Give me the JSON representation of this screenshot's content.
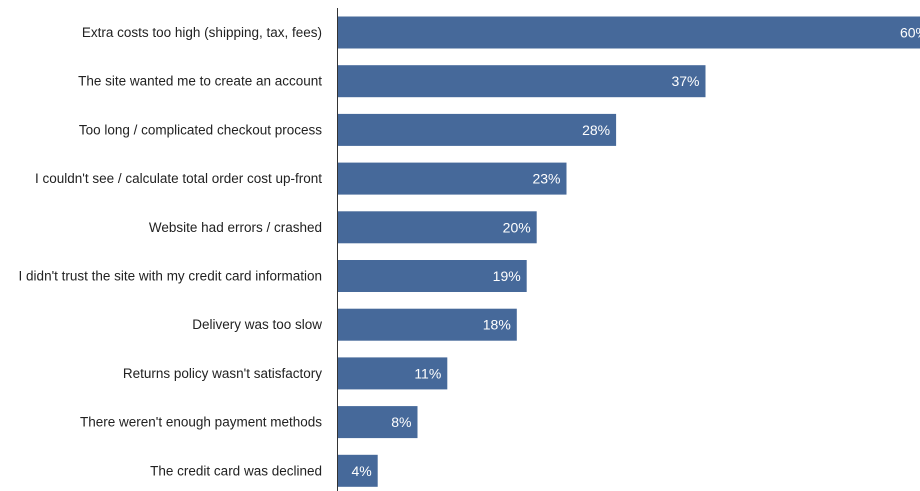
{
  "chart_data": {
    "type": "bar",
    "orientation": "horizontal",
    "categories": [
      "Extra costs too high (shipping, tax, fees)",
      "The site wanted me to create an account",
      "Too long / complicated checkout process",
      "I couldn't see / calculate total order cost up-front",
      "Website had errors / crashed",
      "I didn't trust the site with my credit card information",
      "Delivery was too slow",
      "Returns policy wasn't satisfactory",
      "There weren't enough payment methods",
      "The credit card was declined"
    ],
    "values": [
      60,
      37,
      28,
      23,
      20,
      19,
      18,
      11,
      8,
      4
    ],
    "value_labels": [
      "60%",
      "37%",
      "28%",
      "23%",
      "20%",
      "19%",
      "18%",
      "11%",
      "8%",
      "4%"
    ],
    "value_unit": "%",
    "xlim": [
      0,
      60
    ],
    "grid": false,
    "legend": "none",
    "colors": {
      "bar": "#46699a",
      "axis": "#333333",
      "label_text": "#222222",
      "value_text": "#ffffff"
    }
  }
}
